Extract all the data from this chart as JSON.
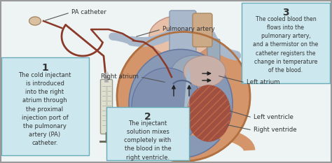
{
  "bg_color": "#eef4f4",
  "box_color": "#cce8ee",
  "box_border": "#6aabba",
  "labels": {
    "pa_catheter": "PA catheter",
    "pulmonary_artery": "Pulmonary artery",
    "right_atrium": "Right atrium",
    "left_atrium": "Left atrium",
    "left_ventricle": "Left ventricle",
    "right_ventricle": "Right ventride"
  },
  "box1_num": "1",
  "box1_text": "The cold injectant\nis introduced\ninto the right\natrium through\nthe proximal\ninjection port of\nthe pulmonary\nartery (PA)\ncatheter.",
  "box2_num": "2",
  "box2_text": "The injectant\nsolution mixes\ncompletely with\nthe blood in the\nright ventricle.",
  "box3_num": "3",
  "box3_text": "The cooled blood then\nflows into the\npulmonary artery,\nand a thermistor on the\ncatheter registers the\nchange in temperature\nof the blood.",
  "heart_outer": "#c8a888",
  "heart_mid": "#8899b5",
  "heart_rv": "#7888a8",
  "heart_lv_muscle": "#a05040",
  "heart_septum": "#99aacc",
  "aorta_color": "#ddbbaa",
  "pulm_trunk": "#aab8cc",
  "peri_color": "#d4956a",
  "catheter_color": "#8b3a2a",
  "syringe_body": "#dcdccc",
  "syringe_line": "#888878",
  "label_line": "#555555",
  "label_color": "#333333",
  "arrow_color": "#222222"
}
